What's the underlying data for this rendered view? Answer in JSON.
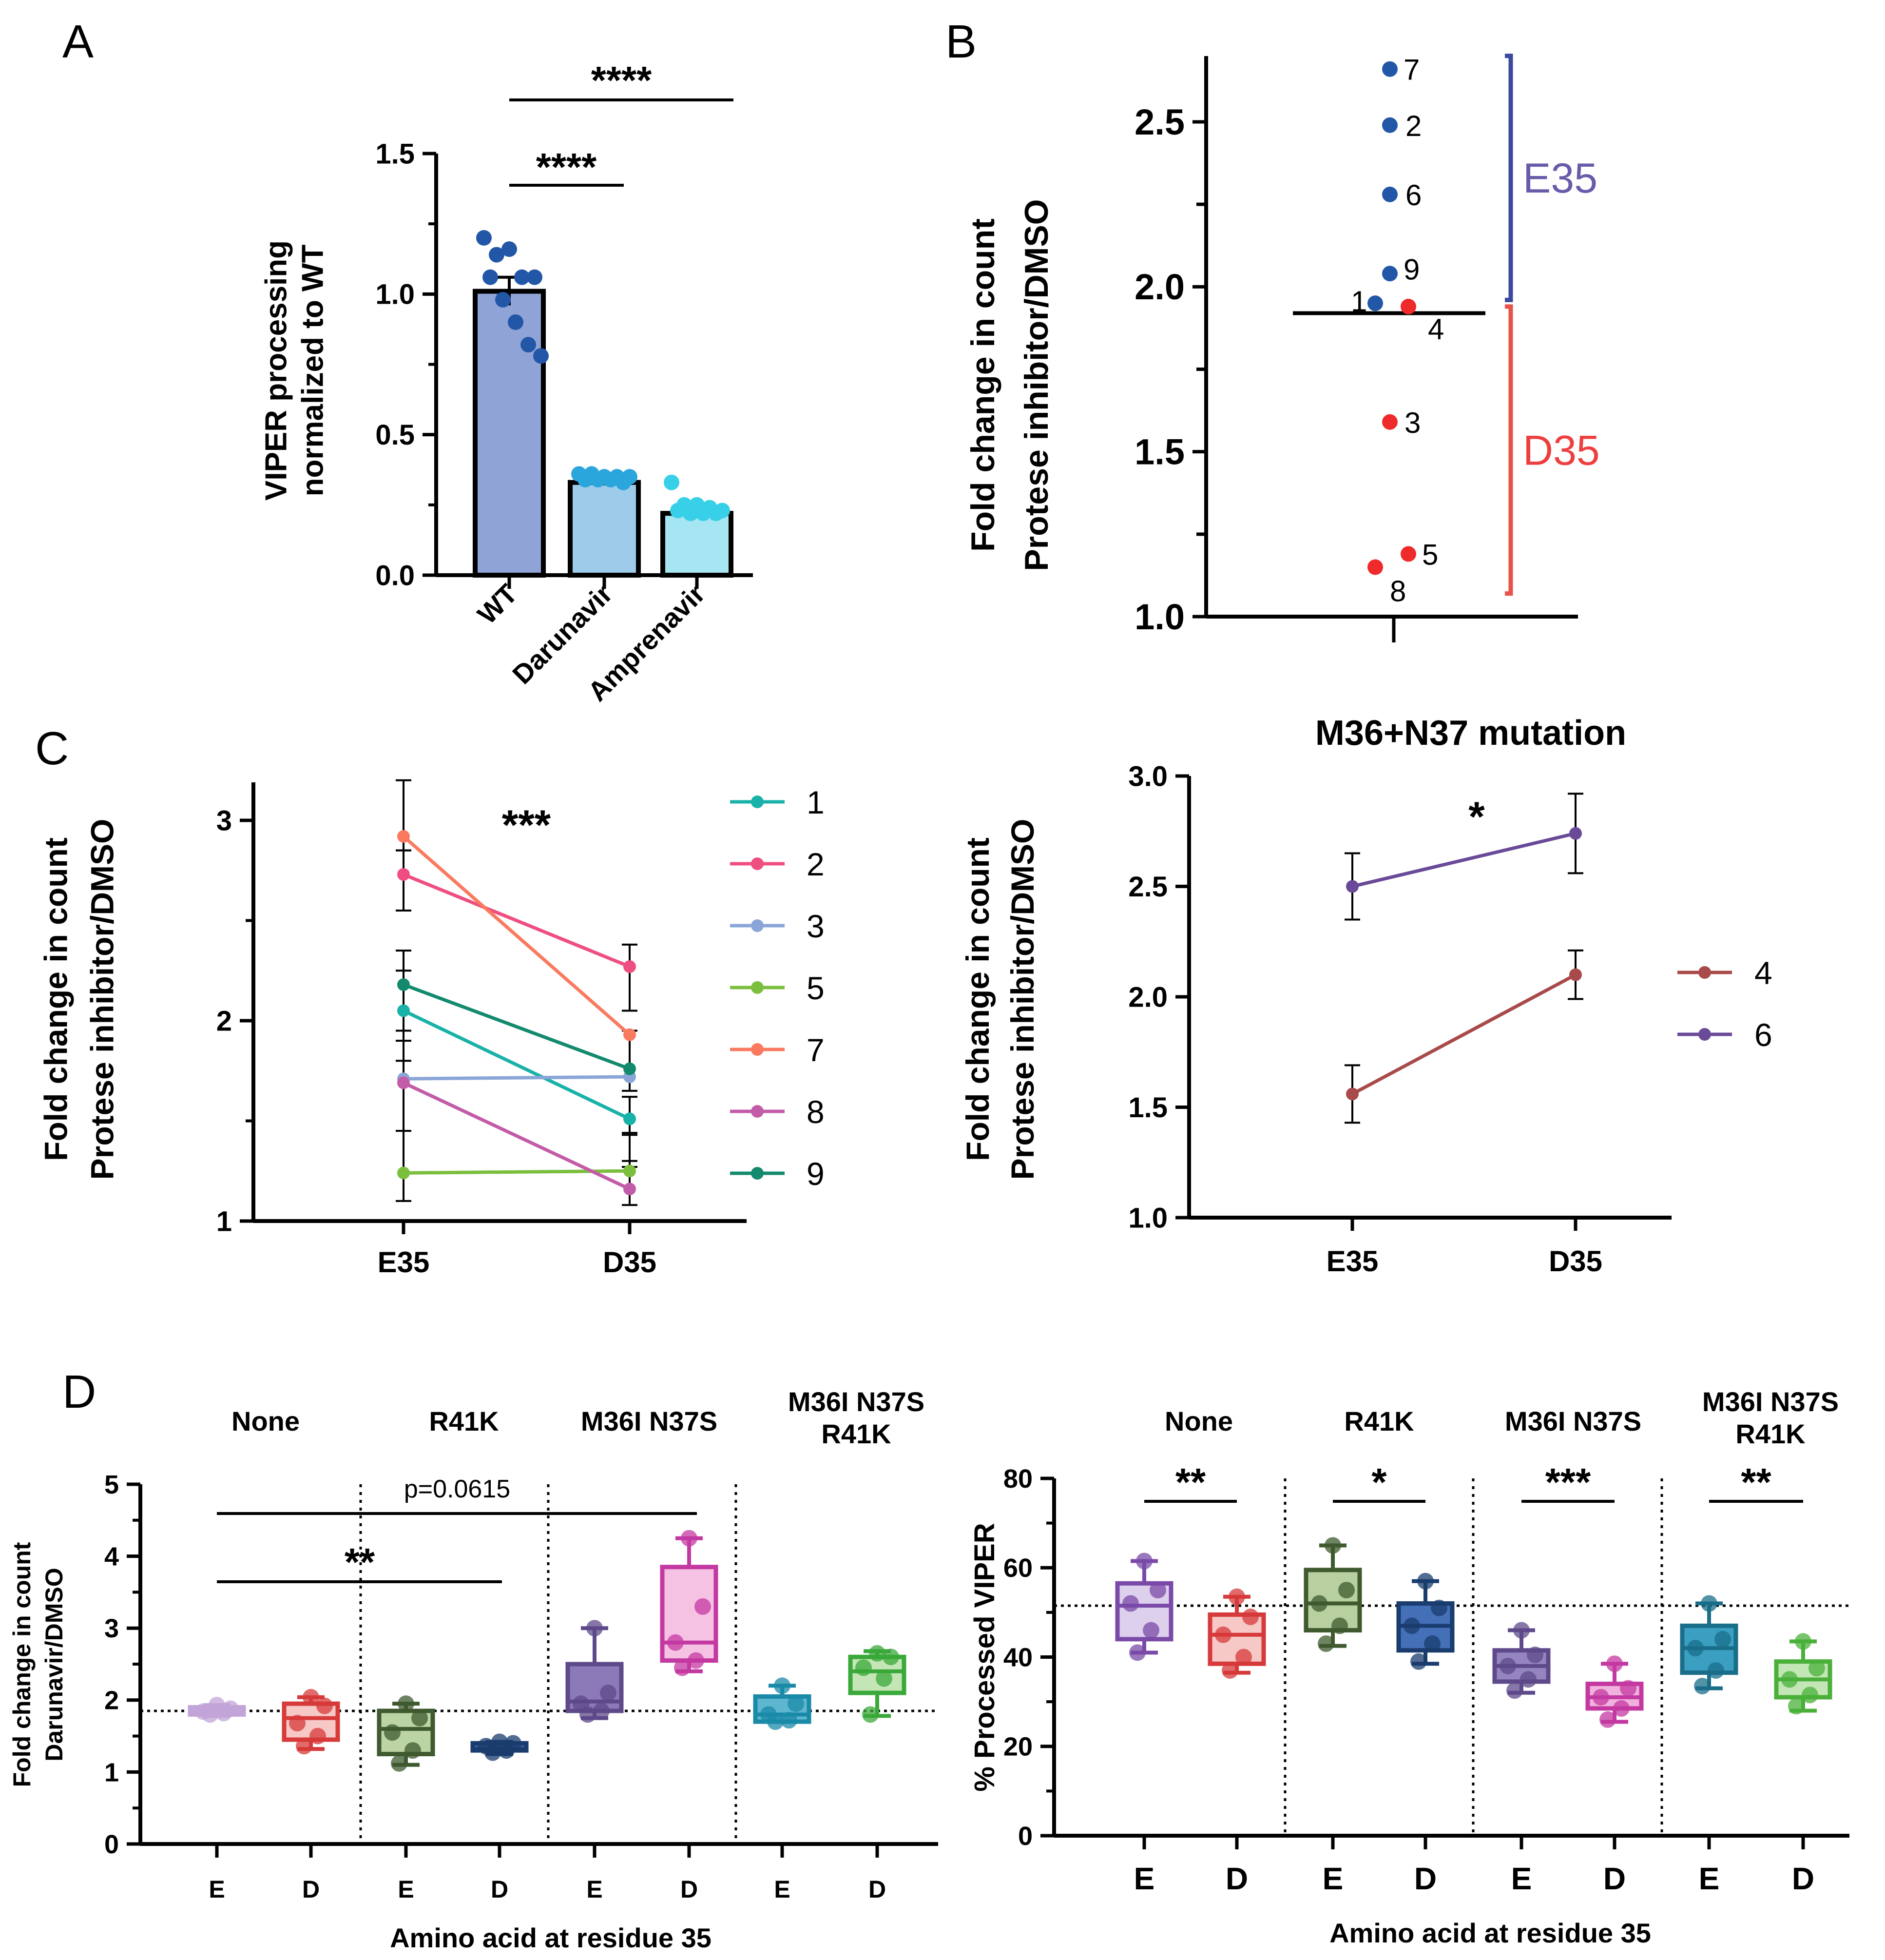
{
  "chart_data": [
    {
      "panel": "A",
      "type": "bar",
      "ylabel": [
        "VIPER processing",
        "normalized to WT"
      ],
      "ylim": [
        0,
        1.5
      ],
      "yticks": [
        "0.0",
        "0.5",
        "1.0",
        "1.5"
      ],
      "categories": [
        "WT",
        "Darunavir",
        "Amprenavir"
      ],
      "values": [
        1.01,
        0.33,
        0.22
      ],
      "errors": [
        0.05,
        0.01,
        0.01
      ],
      "bar_colors": [
        "#8fa3d6",
        "#9ecbea",
        "#a6e6f2"
      ],
      "point_colors": [
        "#2257a8",
        "#2aa6dc",
        "#38d0e8"
      ],
      "points": [
        [
          1.2,
          1.14,
          1.16,
          1.06,
          1.06,
          1.06,
          0.98,
          0.9,
          0.82,
          0.78
        ],
        [
          0.36,
          0.36,
          0.35,
          0.35,
          0.35,
          0.34,
          0.34,
          0.34,
          0.33
        ],
        [
          0.33,
          0.25,
          0.25,
          0.24,
          0.23,
          0.23,
          0.22,
          0.22,
          0.22
        ]
      ],
      "annotations": [
        {
          "text": "****",
          "from": "WT",
          "to": "Darunavir"
        },
        {
          "text": "****",
          "from": "WT",
          "to": "Amprenavir"
        }
      ]
    },
    {
      "panel": "B",
      "type": "scatter",
      "ylabel": [
        "Fold change in count",
        "Protese inhibitor/DMSO"
      ],
      "ylim": [
        1.0,
        2.7
      ],
      "yticks": [
        "1.0",
        "1.5",
        "2.0",
        "2.5"
      ],
      "points": [
        {
          "label": "7",
          "y": 2.66,
          "group": "E35"
        },
        {
          "label": "2",
          "y": 2.49,
          "group": "E35"
        },
        {
          "label": "6",
          "y": 2.28,
          "group": "E35"
        },
        {
          "label": "9",
          "y": 2.04,
          "group": "E35"
        },
        {
          "label": "1",
          "y": 1.95,
          "group": "E35"
        },
        {
          "label": "4",
          "y": 1.94,
          "group": "D35"
        },
        {
          "label": "3",
          "y": 1.59,
          "group": "D35"
        },
        {
          "label": "5",
          "y": 1.19,
          "group": "D35"
        },
        {
          "label": "8",
          "y": 1.15,
          "group": "D35"
        }
      ],
      "median": 1.92,
      "groups": [
        {
          "name": "E35",
          "color": "#3b4a9c",
          "text_color": "#6a5aaa",
          "range": [
            1.96,
            2.7
          ]
        },
        {
          "name": "D35",
          "color": "#e8524a",
          "text_color": "#ee3f3f",
          "range": [
            1.07,
            1.94
          ]
        }
      ]
    },
    {
      "panel": "C",
      "type": "line",
      "ylabel": [
        "Fold change in count",
        "Protese inhibitor/DMSO"
      ],
      "categories": [
        "E35",
        "D35"
      ],
      "ylim": [
        1,
        3.2
      ],
      "yticks": [
        "1",
        "2",
        "3"
      ],
      "annotation": "***",
      "series": [
        {
          "name": "1",
          "values": [
            2.05,
            1.51
          ],
          "color": "#19b2a8"
        },
        {
          "name": "2",
          "values": [
            2.73,
            2.27
          ],
          "color": "#ef4f80"
        },
        {
          "name": "3",
          "values": [
            1.71,
            1.72
          ],
          "color": "#8aa6d8"
        },
        {
          "name": "5",
          "values": [
            1.24,
            1.25
          ],
          "color": "#7cbf3f"
        },
        {
          "name": "7",
          "values": [
            2.92,
            1.93
          ],
          "color": "#fa7a60"
        },
        {
          "name": "8",
          "values": [
            1.69,
            1.16
          ],
          "color": "#c35ca8"
        },
        {
          "name": "9",
          "values": [
            2.18,
            1.76
          ],
          "color": "#138a6e"
        }
      ],
      "errbars": [
        {
          "x": "E35",
          "ranges": [
            [
              2.85,
              3.2
            ],
            [
              2.55,
              2.85
            ],
            [
              1.8,
              2.35
            ],
            [
              1.9,
              2.25
            ],
            [
              1.45,
              1.95
            ],
            [
              1.1,
              1.45
            ]
          ]
        },
        {
          "x": "D35",
          "ranges": [
            [
              2.05,
              2.38
            ],
            [
              1.65,
              1.95
            ],
            [
              1.27,
              1.44
            ],
            [
              1.08,
              1.3
            ],
            [
              1.43,
              1.62
            ]
          ]
        }
      ]
    },
    {
      "panel": "C-right",
      "type": "line",
      "title": "M36+N37 mutation",
      "ylabel": [
        "Fold change in count",
        "Protese inhibitor/DMSO"
      ],
      "categories": [
        "E35",
        "D35"
      ],
      "ylim": [
        1.0,
        3.0
      ],
      "yticks": [
        "1.0",
        "1.5",
        "2.0",
        "2.5",
        "3.0"
      ],
      "annotation": "*",
      "series": [
        {
          "name": "4",
          "values": [
            1.56,
            2.1
          ],
          "errors": [
            0.13,
            0.11
          ],
          "color": "#a84a4a"
        },
        {
          "name": "6",
          "values": [
            2.5,
            2.74
          ],
          "errors": [
            0.15,
            0.18
          ],
          "color": "#6a4a98"
        }
      ]
    },
    {
      "panel": "D-left",
      "type": "box",
      "ylabel": [
        "Fold change in count",
        "Darunavir/DMSO"
      ],
      "xlabel": "Amino acid at residue 35",
      "ylim": [
        0,
        5
      ],
      "yticks": [
        "0",
        "1",
        "2",
        "3",
        "4",
        "5"
      ],
      "reference_line": 1.85,
      "groups": [
        "None",
        "R41K",
        "M36I N37S",
        "M36I N37S R41K"
      ],
      "group_titles": [
        [
          "None"
        ],
        [
          "R41K"
        ],
        [
          "M36I N37S"
        ],
        [
          "M36I N37S",
          "R41K"
        ]
      ],
      "categories": [
        "E",
        "D",
        "E",
        "D",
        "E",
        "D",
        "E",
        "D"
      ],
      "boxes": [
        {
          "min": 1.78,
          "q1": 1.8,
          "median": 1.84,
          "q3": 1.9,
          "max": 1.93,
          "points": [
            1.93,
            1.88,
            1.84,
            1.82,
            1.8
          ],
          "color": "#c1a4d8",
          "fill": "#e4d6ee"
        },
        {
          "min": 1.32,
          "q1": 1.45,
          "median": 1.75,
          "q3": 1.95,
          "max": 2.04,
          "points": [
            2.04,
            1.92,
            1.68,
            1.5,
            1.36
          ],
          "color": "#d73a3a",
          "fill": "#f6c9c6"
        },
        {
          "min": 1.1,
          "q1": 1.25,
          "median": 1.6,
          "q3": 1.85,
          "max": 1.95,
          "points": [
            1.95,
            1.75,
            1.55,
            1.3,
            1.12
          ],
          "color": "#3e5a2e",
          "fill": "#bcd3a4"
        },
        {
          "min": 1.25,
          "q1": 1.3,
          "median": 1.32,
          "q3": 1.4,
          "max": 1.42,
          "points": [
            1.42,
            1.4,
            1.36,
            1.3,
            1.27
          ],
          "color": "#1a3c6e",
          "fill": "#3a66b0"
        },
        {
          "min": 1.75,
          "q1": 1.85,
          "median": 1.98,
          "q3": 2.5,
          "max": 3.0,
          "points": [
            3.0,
            2.1,
            1.95,
            1.85,
            1.8
          ],
          "color": "#5e4a8a",
          "fill": "#8c79b8"
        },
        {
          "min": 2.4,
          "q1": 2.55,
          "median": 2.8,
          "q3": 3.85,
          "max": 4.25,
          "points": [
            4.25,
            3.3,
            2.8,
            2.55,
            2.45
          ],
          "color": "#c438a2",
          "fill": "#f5c2e4"
        },
        {
          "min": 1.7,
          "q1": 1.7,
          "median": 1.8,
          "q3": 2.05,
          "max": 2.2,
          "points": [
            2.2,
            1.95,
            1.8,
            1.72,
            1.7
          ],
          "color": "#1a8aa8",
          "fill": "#5fb6cf"
        },
        {
          "min": 1.78,
          "q1": 2.1,
          "median": 2.4,
          "q3": 2.6,
          "max": 2.68,
          "points": [
            2.65,
            2.6,
            2.45,
            2.3,
            1.8
          ],
          "color": "#3aa83a",
          "fill": "#c4e6b6"
        }
      ],
      "comparisons": [
        {
          "text": "p=0.0615"
        },
        {
          "text": "**"
        }
      ]
    },
    {
      "panel": "D-right",
      "type": "box",
      "ylabel": [
        "% Processed VIPER"
      ],
      "xlabel": "Amino acid at residue 35",
      "ylim": [
        0,
        80
      ],
      "yticks": [
        "0",
        "20",
        "40",
        "60",
        "80"
      ],
      "reference_line": 51.5,
      "groups": [
        "None",
        "R41K",
        "M36I N37S",
        "M36I N37S R41K"
      ],
      "group_titles": [
        [
          "None"
        ],
        [
          "R41K"
        ],
        [
          "M36I N37S"
        ],
        [
          "M36I N37S",
          "R41K"
        ]
      ],
      "significance": [
        "**",
        "*",
        "***",
        "**"
      ],
      "categories": [
        "E",
        "D",
        "E",
        "D",
        "E",
        "D",
        "E",
        "D"
      ],
      "boxes": [
        {
          "min": 41,
          "q1": 44,
          "median": 51.5,
          "q3": 56.5,
          "max": 61.5,
          "points": [
            61.5,
            55,
            52,
            46,
            41
          ],
          "color": "#7a4aa8",
          "fill": "#ddd0ec"
        },
        {
          "min": 36.5,
          "q1": 38.5,
          "median": 45,
          "q3": 49.5,
          "max": 53.5,
          "points": [
            53.5,
            49,
            45,
            40,
            37
          ],
          "color": "#d73a3a",
          "fill": "#f6c9c6"
        },
        {
          "min": 42.5,
          "q1": 46,
          "median": 52,
          "q3": 59.5,
          "max": 65,
          "points": [
            65,
            55,
            52,
            47,
            43
          ],
          "color": "#3e5a2e",
          "fill": "#b8cfa0"
        },
        {
          "min": 38.5,
          "q1": 41.5,
          "median": 47,
          "q3": 52,
          "max": 57,
          "points": [
            57,
            51,
            47,
            43,
            39
          ],
          "color": "#1a3c6e",
          "fill": "#4470b8"
        },
        {
          "min": 32,
          "q1": 34.5,
          "median": 38,
          "q3": 41.5,
          "max": 46,
          "points": [
            46,
            40.5,
            38,
            35,
            32.5
          ],
          "color": "#5e4a8a",
          "fill": "#9484c0"
        },
        {
          "min": 25.5,
          "q1": 28.5,
          "median": 31,
          "q3": 34,
          "max": 38.5,
          "points": [
            38.5,
            33,
            31,
            28.5,
            26
          ],
          "color": "#c438a2",
          "fill": "#f0b2dc"
        },
        {
          "min": 33,
          "q1": 36.5,
          "median": 42,
          "q3": 47,
          "max": 52,
          "points": [
            52,
            44,
            42,
            37,
            33.5
          ],
          "color": "#1a6e8a",
          "fill": "#3a9fc0"
        },
        {
          "min": 28,
          "q1": 31,
          "median": 35,
          "q3": 39,
          "max": 43.5,
          "points": [
            43.5,
            37.5,
            35,
            31.5,
            29
          ],
          "color": "#4ab03a",
          "fill": "#c4e6b6"
        }
      ]
    }
  ],
  "labels": {
    "panel_a": "A",
    "panel_b": "B",
    "panel_c": "C",
    "panel_d": "D"
  }
}
